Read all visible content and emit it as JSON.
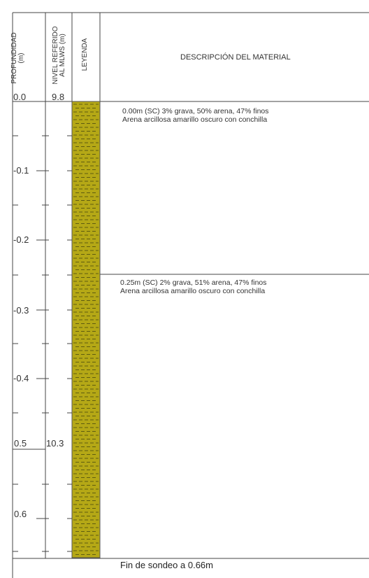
{
  "headers": {
    "depth": [
      "PROFUNDIDAD",
      "(m)"
    ],
    "level": [
      "NIVEL REFERIDO",
      "AL MLWS (m)"
    ],
    "legend": "LEYENDA",
    "description": "DESCRIPCIÓN DEL MATERIAL"
  },
  "top": {
    "depth": "0.0",
    "level": "9.8"
  },
  "depth_ticks": [
    "-0.1",
    "-0.2",
    "-0.3",
    "-0.4",
    "0.5",
    "0.6"
  ],
  "level_ticks": {
    "at_0_5": "10.3"
  },
  "layers": [
    {
      "line1": "0.00m (SC) 3% grava, 50% arena, 47% finos",
      "line2": "Arena arcillosa amarillo oscuro con conchilla"
    },
    {
      "line1": "0.25m (SC) 2% grava, 51% arena, 47% finos",
      "line2": "Arena arcillosa amarillo oscuro con conchilla"
    }
  ],
  "footer": "Fin de sondeo a 0.66m",
  "colors": {
    "soil_fill": "#b5a816",
    "soil_hatch": "#4a4a10",
    "lines": "#444444"
  }
}
